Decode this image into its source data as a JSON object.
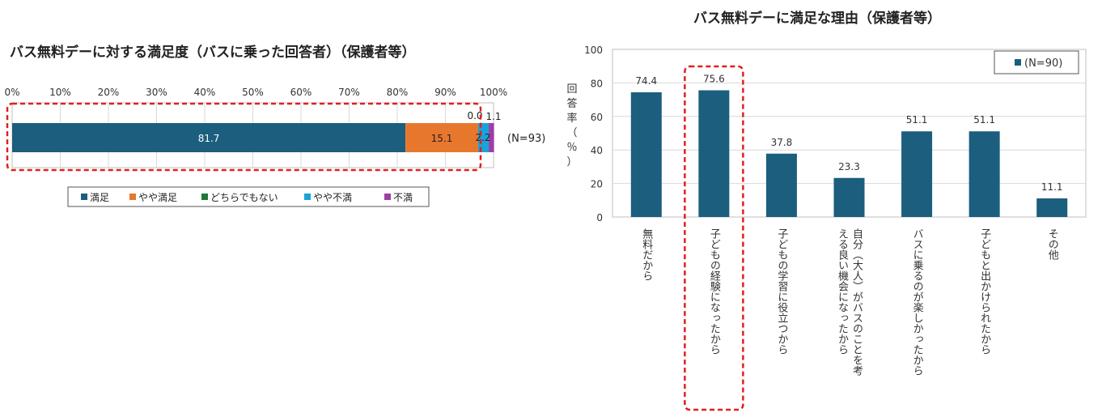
{
  "chart_data": [
    {
      "type": "bar",
      "orientation": "horizontal",
      "stacked": true,
      "title": "バス無料デーに対する満足度（バスに乗った回答者）（保護者等）",
      "x_ticks": [
        "0%",
        "10%",
        "20%",
        "30%",
        "40%",
        "50%",
        "60%",
        "70%",
        "80%",
        "90%",
        "100%"
      ],
      "xlim": [
        0,
        100
      ],
      "category_label": "(N=93)",
      "series": [
        {
          "name": "満足",
          "value": 81.7,
          "label": "81.7",
          "color": "#1b5e7e"
        },
        {
          "name": "やや満足",
          "value": 15.1,
          "label": "15.1",
          "color": "#e8772e"
        },
        {
          "name": "どちらでもない",
          "value": 0.0,
          "label": "0.0",
          "color": "#1e7a3a"
        },
        {
          "name": "やや不満",
          "value": 2.2,
          "label": "2.2",
          "color": "#1aa3d9"
        },
        {
          "name": "不満",
          "value": 1.1,
          "label": "1.1",
          "color": "#9b3fa6"
        }
      ],
      "legend_position": "bottom",
      "grid": true
    },
    {
      "type": "bar",
      "title": "バス無料デーに満足な理由（保護者等）",
      "ylabel": "回答率（％）",
      "ylim": [
        0,
        100
      ],
      "y_ticks": [
        "0",
        "20",
        "40",
        "60",
        "80",
        "100"
      ],
      "categories": [
        "無料だから",
        "子どもの経験になったから",
        "子どもの学習に役立つから",
        "自分（大人）がバスのことを考える良い機会になったから",
        "バスに乗るのが楽しかったから",
        "子どもと出かけられたから",
        "その他"
      ],
      "category_lines": [
        [
          "無料だから"
        ],
        [
          "子どもの経験になったから"
        ],
        [
          "子どもの学習に役立つから"
        ],
        [
          "自分（大人）がバスのことを考",
          "える良い機会になったから"
        ],
        [
          "バスに乗るのが楽しかったから"
        ],
        [
          "子どもと出かけられたから"
        ],
        [
          "その他"
        ]
      ],
      "series": [
        {
          "name": "(N=90)",
          "values": [
            74.4,
            75.6,
            37.8,
            23.3,
            51.1,
            51.1,
            11.1
          ],
          "color": "#1b5e7e"
        }
      ],
      "value_labels": [
        "74.4",
        "75.6",
        "37.8",
        "23.3",
        "51.1",
        "51.1",
        "11.1"
      ],
      "legend_position": "top-right",
      "grid": true
    }
  ]
}
